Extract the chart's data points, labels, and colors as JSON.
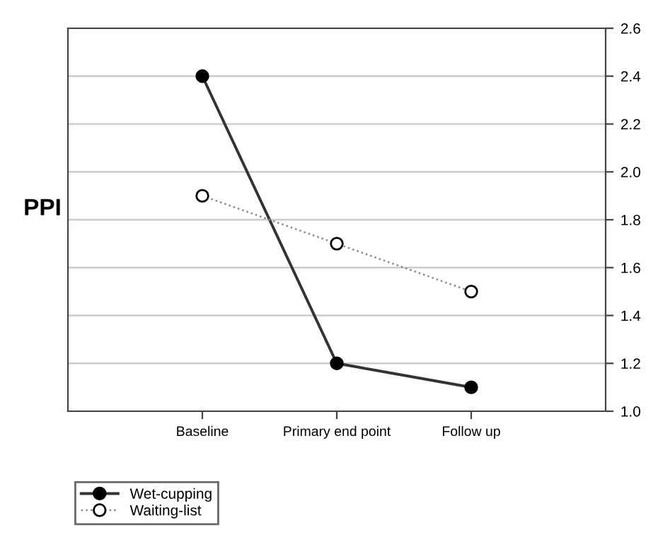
{
  "chart_data": {
    "type": "line",
    "ylabel": "PPI",
    "categories": [
      "Baseline",
      "Primary end point",
      "Follow up"
    ],
    "series": [
      {
        "name": "Wet-cupping",
        "color": "#333333",
        "values": [
          2.4,
          1.2,
          1.1
        ],
        "marker": "circle",
        "line_style": "solid"
      },
      {
        "name": "Waiting-list",
        "color": "#888888",
        "values": [
          1.9,
          1.7,
          1.5
        ],
        "marker": "open circle",
        "line_style": "dotted"
      }
    ],
    "ylim": [
      1.0,
      2.6
    ],
    "yticks": [
      {
        "value": 1,
        "label": "1.0"
      },
      1.2,
      1.4,
      1.6,
      1.8,
      {
        "value": 2,
        "label": "2.0"
      },
      2.2,
      2.4,
      2.6
    ],
    "grid": "y",
    "legend": "bottom left"
  }
}
